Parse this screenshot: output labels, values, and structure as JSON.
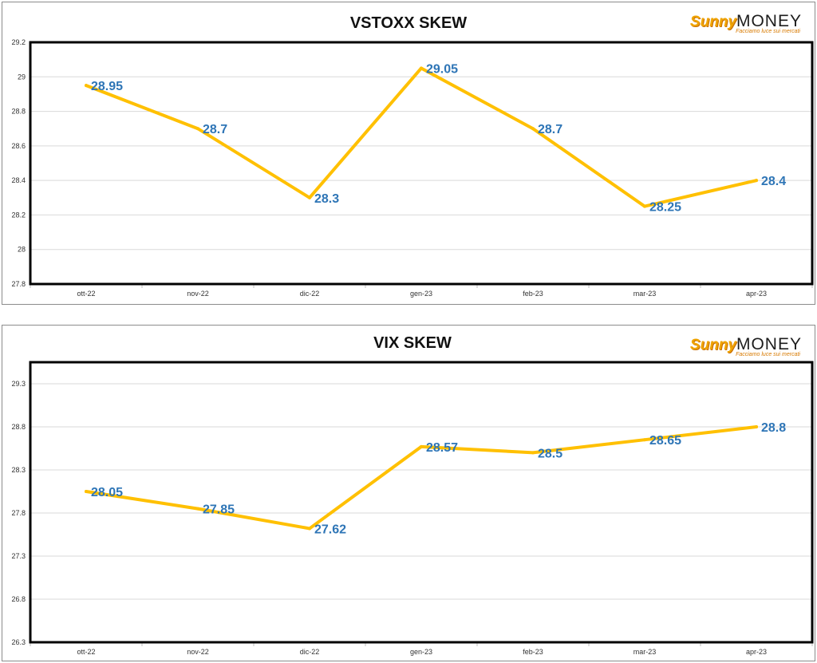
{
  "logo": {
    "sunny": "Sunny",
    "money": "MONEY",
    "tagline": "Facciamo luce sui mercati"
  },
  "chart_data": [
    {
      "type": "line",
      "title": "VSTOXX SKEW",
      "categories": [
        "ott-22",
        "nov-22",
        "dic-22",
        "gen-23",
        "feb-23",
        "mar-23",
        "apr-23"
      ],
      "values": [
        28.95,
        28.7,
        28.3,
        29.05,
        28.7,
        28.25,
        28.4
      ],
      "data_labels": [
        "28.95",
        "28.7",
        "28.3",
        "29.05",
        "28.7",
        "28.25",
        "28.4"
      ],
      "ylim": [
        27.8,
        29.2
      ],
      "yticks": [
        27.8,
        28,
        28.2,
        28.4,
        28.6,
        28.8,
        29,
        29.2
      ],
      "ytick_labels": [
        "27.8",
        "28",
        "28.2",
        "28.4",
        "28.6",
        "28.8",
        "29",
        "29.2"
      ],
      "grid": true,
      "line_color": "#ffc000",
      "label_color": "#2e75b6"
    },
    {
      "type": "line",
      "title": "VIX SKEW",
      "categories": [
        "ott-22",
        "nov-22",
        "dic-22",
        "gen-23",
        "feb-23",
        "mar-23",
        "apr-23"
      ],
      "values": [
        28.05,
        27.85,
        27.62,
        28.57,
        28.5,
        28.65,
        28.8
      ],
      "data_labels": [
        "28.05",
        "27.85",
        "27.62",
        "28.57",
        "28.5",
        "28.65",
        "28.8"
      ],
      "ylim": [
        26.3,
        29.55
      ],
      "yticks": [
        26.3,
        26.8,
        27.3,
        27.8,
        28.3,
        28.8,
        29.3
      ],
      "ytick_labels": [
        "26.3",
        "26.8",
        "27.3",
        "27.8",
        "28.3",
        "28.8",
        "29.3"
      ],
      "grid": true,
      "line_color": "#ffc000",
      "label_color": "#2e75b6"
    }
  ]
}
